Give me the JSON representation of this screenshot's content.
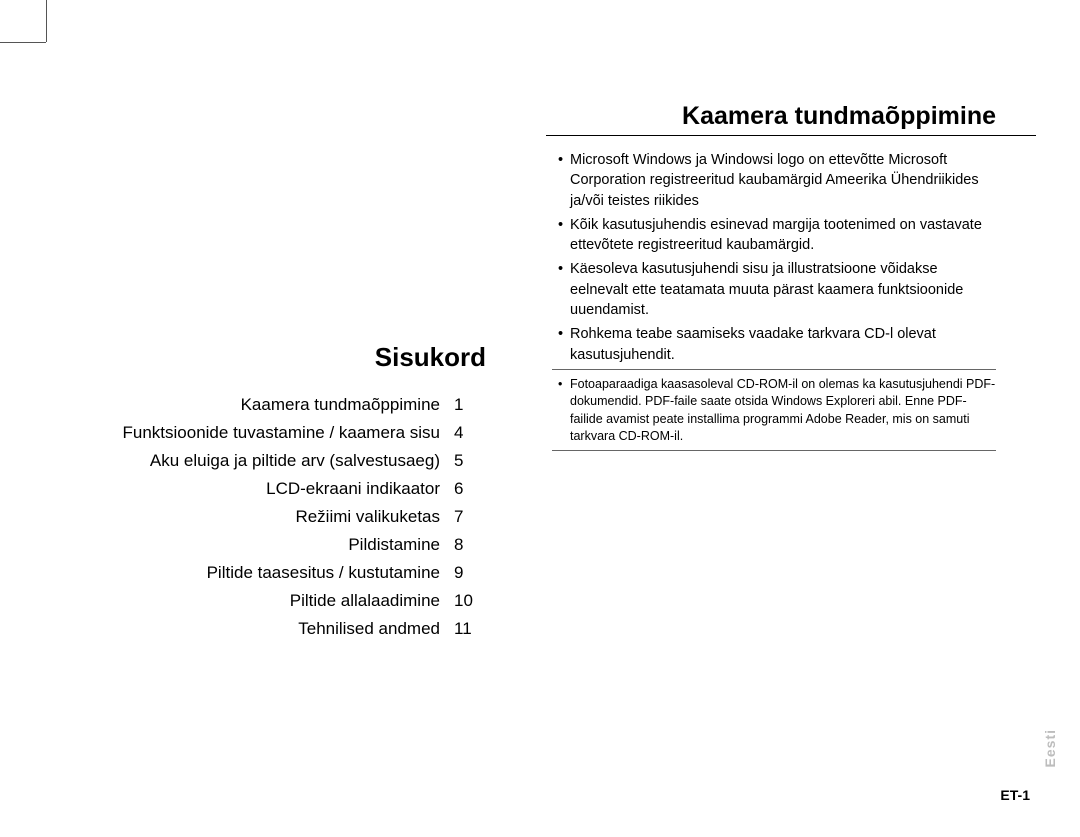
{
  "left": {
    "heading": "Sisukord",
    "toc": [
      {
        "label": "Kaamera tundmaõppimine",
        "page": "1"
      },
      {
        "label": "Funktsioonide tuvastamine / kaamera sisu",
        "page": "4"
      },
      {
        "label": "Aku eluiga ja piltide arv (salvestusaeg)",
        "page": "5"
      },
      {
        "label": "LCD-ekraani indikaator",
        "page": "6"
      },
      {
        "label": "Režiimi valikuketas",
        "page": "7"
      },
      {
        "label": "Pildistamine",
        "page": "8"
      },
      {
        "label": "Piltide taasesitus / kustutamine",
        "page": "9"
      },
      {
        "label": "Piltide allalaadimine",
        "page": "10"
      },
      {
        "label": "Tehnilised andmed",
        "page": "11"
      }
    ]
  },
  "right": {
    "heading": "Kaamera tundmaõppimine",
    "bullets": [
      "Microsoft Windows ja Windowsi logo on ettevõtte Microsoft Corporation registreeritud kaubamärgid Ameerika Ühendriikides ja/või teistes riikides",
      "Kõik kasutusjuhendis esinevad margija tootenimed on vastavate ettevõtete registreeritud kaubamärgid.",
      "Käesoleva kasutusjuhendi sisu ja illustratsioone võidakse eelnevalt ette teatamata muuta pärast kaamera funktsioonide uuendamist.",
      "Rohkema teabe saamiseks vaadake tarkvara CD-l olevat kasutusjuhendit."
    ],
    "note": "Fotoaparaadiga kaasasoleval CD-ROM-il on olemas ka kasutusjuhendi PDF-dokumendid. PDF-faile saate otsida Windows Exploreri abil. Enne PDF-failide avamist peate installima programmi Adobe Reader, mis on samuti tarkvara CD-ROM-il."
  },
  "sideTab": "Eesti",
  "pageNumber": "ET-1",
  "colors": {
    "text": "#000000",
    "background": "#ffffff",
    "sideTab": "#bdbdbd",
    "crop": "#555555",
    "divider": "#666666"
  },
  "typography": {
    "heading_fontsize_pt": 19,
    "toc_fontsize_pt": 13,
    "bullet_fontsize_pt": 11,
    "note_fontsize_pt": 9.5,
    "font_family": "Arial, sans-serif"
  }
}
